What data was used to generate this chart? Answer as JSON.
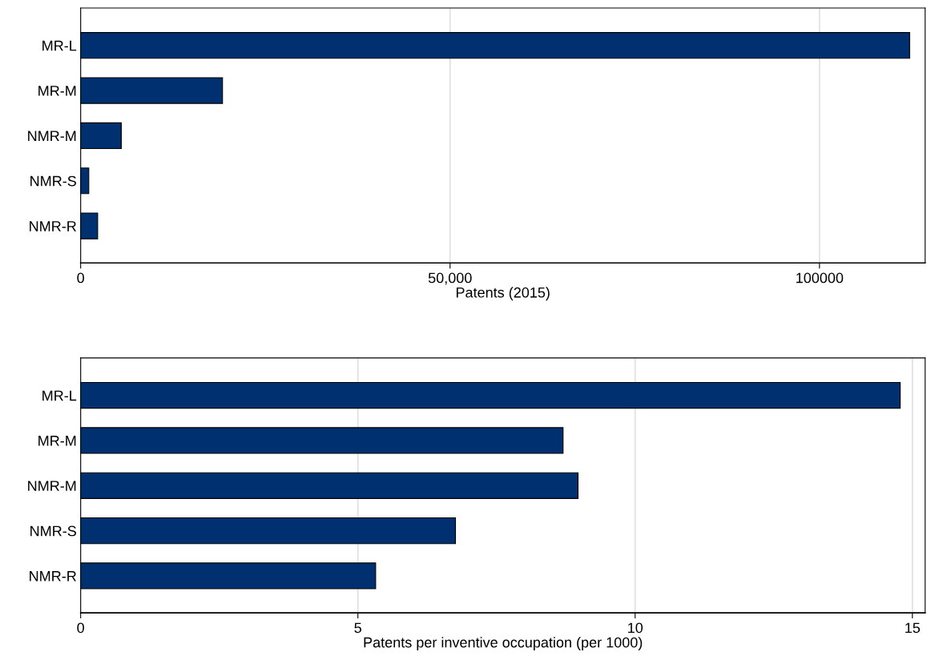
{
  "chart_data": [
    {
      "type": "bar",
      "orientation": "horizontal",
      "categories": [
        "MR-L",
        "MR-M",
        "NMR-M",
        "NMR-S",
        "NMR-R"
      ],
      "values": [
        112200,
        19200,
        5500,
        1100,
        2300
      ],
      "color": "#003070",
      "xlabel": "Patents (2015)",
      "xlim": [
        0,
        114300
      ],
      "xticks": [
        0,
        {
          "value": 50000,
          "label": "50,000"
        },
        100000
      ],
      "grid": "x"
    },
    {
      "type": "bar",
      "orientation": "horizontal",
      "categories": [
        "MR-L",
        "MR-M",
        "NMR-M",
        "NMR-S",
        "NMR-R"
      ],
      "values": [
        14.78,
        8.7,
        8.97,
        6.76,
        5.32
      ],
      "color": "#003070",
      "xlabel": "Patents per inventive occupation (per 1000)",
      "xlim": [
        0,
        15.23
      ],
      "xticks": [
        0,
        5,
        10,
        15
      ],
      "grid": "x"
    }
  ]
}
